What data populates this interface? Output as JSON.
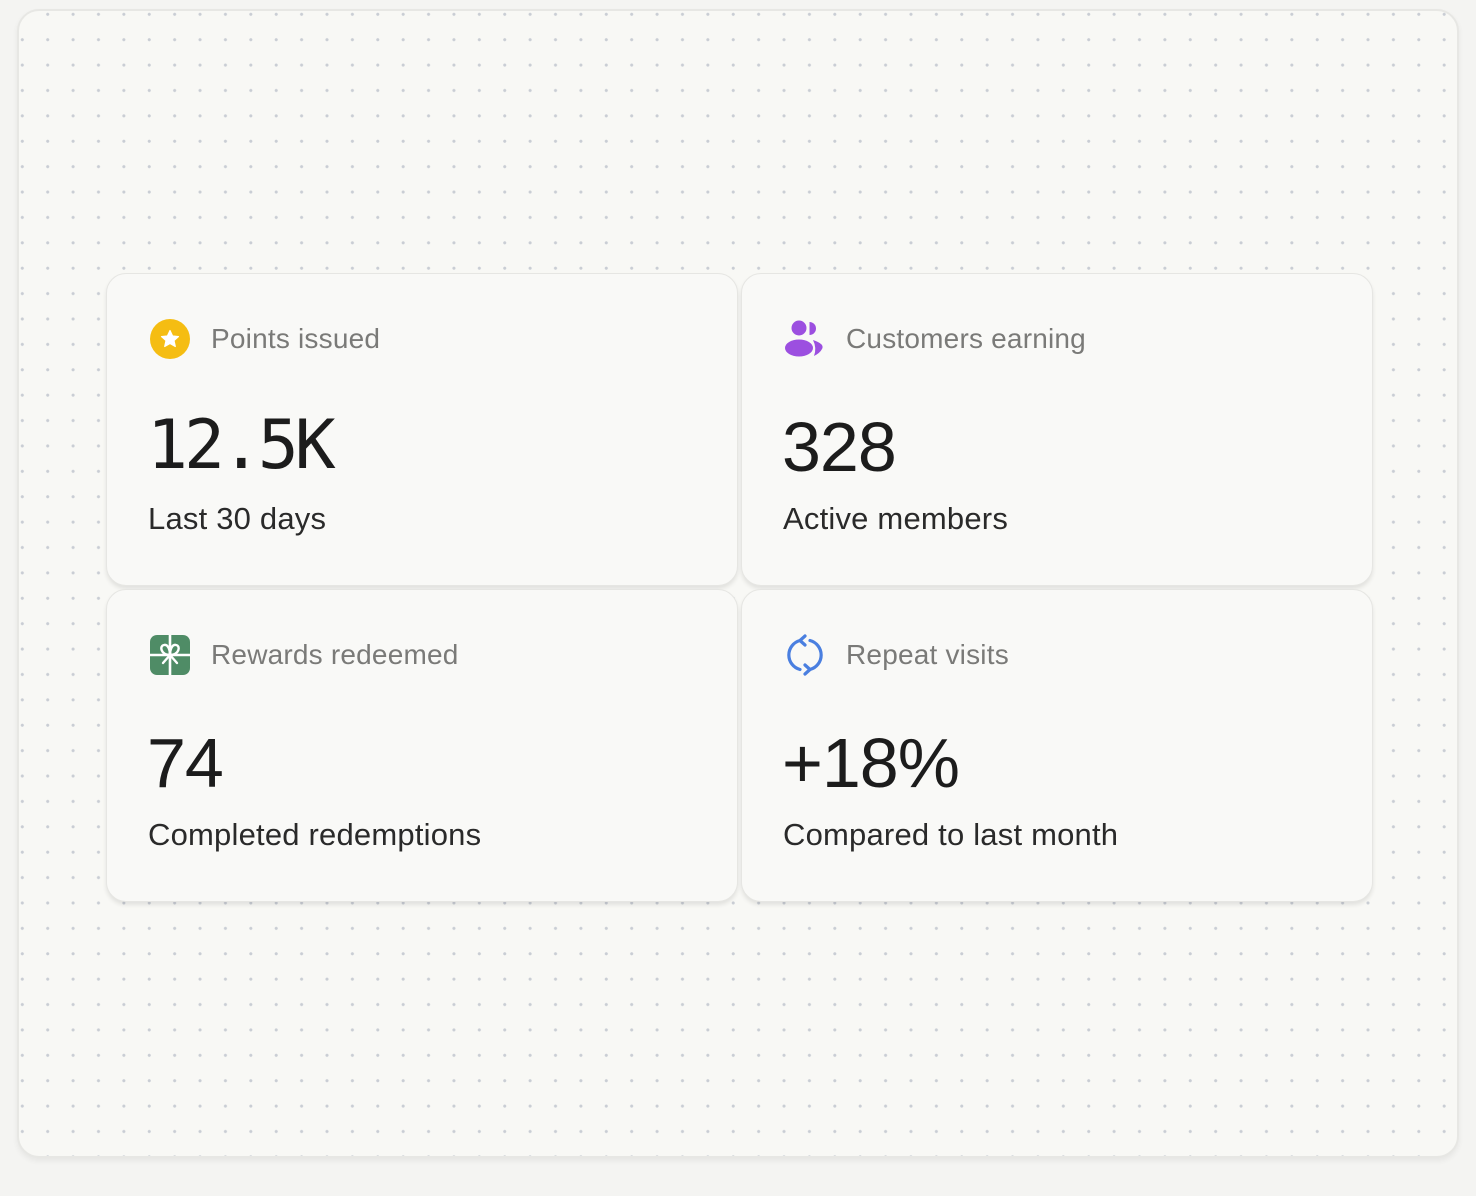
{
  "stats": [
    {
      "label": "Points issued",
      "value": "12.5K",
      "sub": "Last 30 days",
      "icon": "star-icon",
      "color": "#f5bd12"
    },
    {
      "label": "Customers earning",
      "value": "328",
      "sub": "Active members",
      "icon": "users-icon",
      "color": "#9c4fe0"
    },
    {
      "label": "Rewards redeemed",
      "value": "74",
      "sub": "Completed redemptions",
      "icon": "gift-icon",
      "color": "#4f8c66"
    },
    {
      "label": "Repeat visits",
      "value": "+18%",
      "sub": "Compared to last month",
      "icon": "refresh-icon",
      "color": "#4a7fe0"
    }
  ]
}
